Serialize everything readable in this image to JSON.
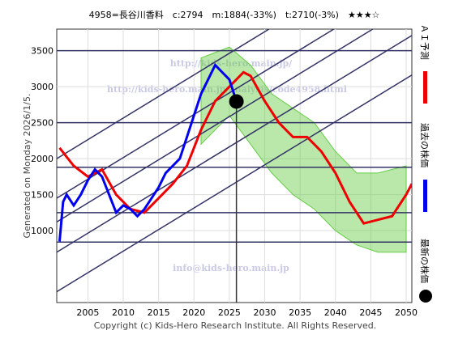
{
  "chart_data": {
    "type": "line",
    "title": "4958=長谷川香料　c:2794　m:1884(-33%)　t:2710(-3%)　★★★☆",
    "side_text": "Generated on Monday 2026/1/5.",
    "footer": "Copyright (c) Kids-Hero Research Institute. All Rights Reserved.",
    "watermarks": [
      "http://kids-hero.main.jp/",
      "http://kids-hero.main.jp/analysis/code4958.html",
      "info@kids-hero.main.jp"
    ],
    "xlim": [
      2000.6,
      2050.8
    ],
    "ylim": [
      0,
      3800
    ],
    "xticks": [
      2005,
      2010,
      2015,
      2020,
      2025,
      2030,
      2035,
      2040,
      2045,
      2050
    ],
    "yticks": [
      1000,
      1500,
      2000,
      2500,
      3000,
      3500
    ],
    "hlines": [
      3500,
      2500,
      1880,
      1250,
      840
    ],
    "trend_lines": [
      {
        "x": [
          2000.6,
          2050.8
        ],
        "y": [
          150,
          3162
        ]
      },
      {
        "x": [
          2000.6,
          2050.8
        ],
        "y": [
          700,
          3712
        ]
      },
      {
        "x": [
          2000.6,
          2050.8
        ],
        "y": [
          1120,
          4132
        ]
      },
      {
        "x": [
          2000.6,
          2050.8
        ],
        "y": [
          1450,
          4462
        ]
      },
      {
        "x": [
          2000.6,
          2050.8
        ],
        "y": [
          2000,
          5012
        ]
      }
    ],
    "band": {
      "color": "#66cc44",
      "x": [
        2021,
        2025,
        2028,
        2031,
        2034,
        2037,
        2040,
        2043,
        2046,
        2050
      ],
      "upper": [
        3400,
        3550,
        3300,
        2900,
        2700,
        2500,
        2100,
        1800,
        1800,
        1900
      ],
      "lower": [
        2200,
        2600,
        2200,
        1800,
        1500,
        1300,
        1000,
        800,
        700,
        700
      ]
    },
    "series": [
      {
        "name": "ＡＩ予測",
        "color": "#ee0000",
        "x": [
          2001,
          2003,
          2005,
          2007,
          2009,
          2011,
          2013,
          2015,
          2017,
          2019,
          2021,
          2023,
          2025,
          2027,
          2028,
          2030,
          2032,
          2034,
          2036,
          2038,
          2040,
          2042,
          2044,
          2046,
          2048,
          2050,
          2050.8
        ],
        "y": [
          2150,
          1900,
          1750,
          1850,
          1500,
          1300,
          1250,
          1450,
          1650,
          1900,
          2400,
          2800,
          3000,
          3200,
          3150,
          2800,
          2500,
          2300,
          2300,
          2100,
          1800,
          1400,
          1100,
          1150,
          1200,
          1500,
          1650
        ]
      },
      {
        "name": "過去の株価",
        "color": "#0000ee",
        "x": [
          2001,
          2001.5,
          2002,
          2003,
          2004,
          2005,
          2006,
          2007,
          2008,
          2009,
          2010,
          2011,
          2012,
          2013,
          2014,
          2015,
          2016,
          2017,
          2018,
          2019,
          2020,
          2021,
          2022,
          2023,
          2024,
          2025,
          2025.5,
          2026
        ],
        "y": [
          850,
          1400,
          1500,
          1350,
          1500,
          1700,
          1850,
          1750,
          1500,
          1250,
          1350,
          1300,
          1200,
          1300,
          1450,
          1600,
          1800,
          1900,
          2000,
          2300,
          2600,
          2900,
          3100,
          3300,
          3200,
          3100,
          2950,
          2794
        ]
      }
    ],
    "latest": {
      "name": "最新の株価",
      "x": 2026,
      "y": 2794
    }
  }
}
